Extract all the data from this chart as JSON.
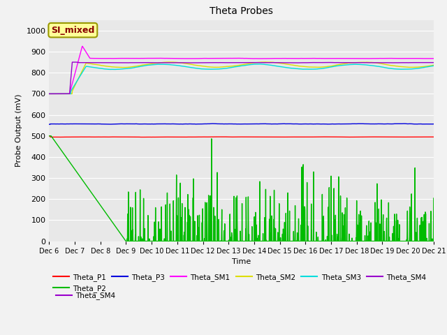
{
  "title": "Theta Probes",
  "ylabel": "Probe Output (mV)",
  "xlabel": "Time",
  "annotation": "SI_mixed",
  "annotation_bg": "#ffff99",
  "annotation_border": "#999900",
  "annotation_text_color": "#880000",
  "xlim": [
    6,
    21
  ],
  "ylim": [
    0,
    1050
  ],
  "yticks": [
    0,
    100,
    200,
    300,
    400,
    500,
    600,
    700,
    800,
    900,
    1000
  ],
  "xtick_labels": [
    "Dec 6",
    "Dec 7",
    "Dec 8",
    "Dec 9",
    "Dec 10",
    "Dec 11",
    "Dec 12",
    "Dec 13",
    "Dec 14",
    "Dec 15",
    "Dec 16",
    "Dec 17",
    "Dec 18",
    "Dec 19",
    "Dec 20",
    "Dec 21"
  ],
  "fig_bg": "#f2f2f2",
  "plot_bg": "#e8e8e8",
  "grid_color": "#ffffff",
  "series": {
    "Theta_P1": {
      "color": "#ff0000",
      "lw": 1.0
    },
    "Theta_P2": {
      "color": "#00bb00",
      "lw": 1.0
    },
    "Theta_P3": {
      "color": "#0000dd",
      "lw": 1.0
    },
    "Theta_SM1": {
      "color": "#ff00ff",
      "lw": 1.0
    },
    "Theta_SM2": {
      "color": "#dddd00",
      "lw": 1.0
    },
    "Theta_SM3": {
      "color": "#00dddd",
      "lw": 1.0
    },
    "Theta_SM4": {
      "color": "#9900cc",
      "lw": 1.0
    }
  },
  "legend_order": [
    "Theta_P1",
    "Theta_P2",
    "Theta_P3",
    "Theta_SM1",
    "Theta_SM2",
    "Theta_SM3",
    "Theta_SM4"
  ]
}
